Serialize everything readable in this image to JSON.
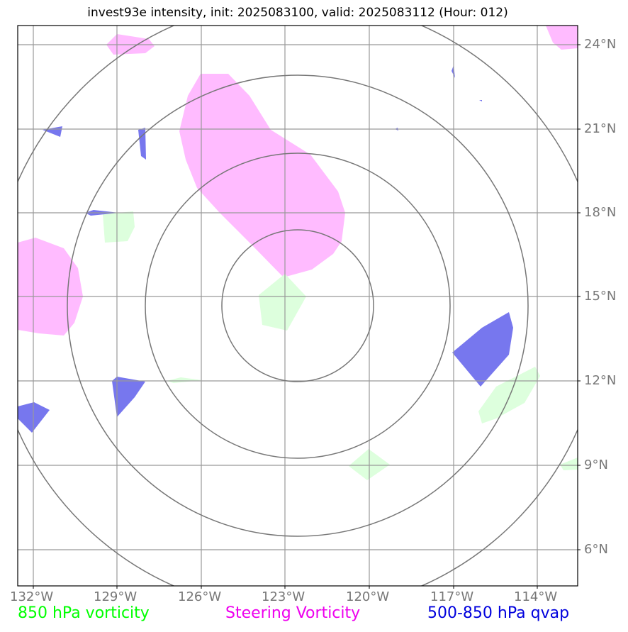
{
  "title": "invest93e intensity, init: 2025083100, valid: 2025083112 (Hour: 012)",
  "legend": [
    {
      "label": "850 hPa vorticity",
      "color": "#00ff00"
    },
    {
      "label": "Steering Vorticity",
      "color": "#ee00ee"
    },
    {
      "label": "500-850 hPa qvap",
      "color": "#0000dd"
    }
  ],
  "lat_labels": [
    "24°N",
    "21°N",
    "18°N",
    "15°N",
    "12°N",
    "9°N",
    "6°N"
  ],
  "lon_labels": [
    "132°W",
    "129°W",
    "126°W",
    "123°W",
    "120°W",
    "117°W",
    "114°W"
  ],
  "colors": {
    "vorticity_850": "#ddffdd",
    "steering_vorticity": "#ffbbff",
    "qvap": "#7777ee",
    "grid": "#999999",
    "rings": "#777777"
  }
}
